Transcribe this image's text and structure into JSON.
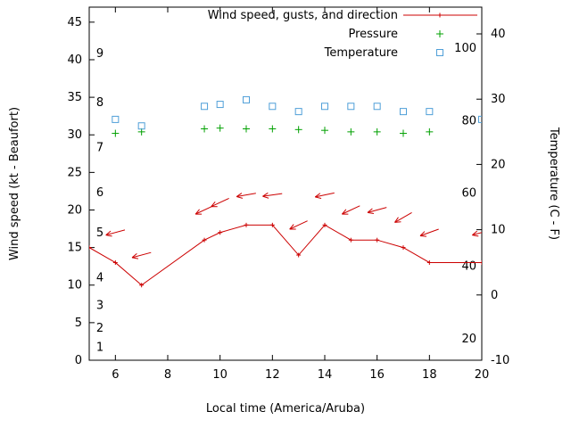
{
  "chart_data": {
    "type": "line",
    "title": "",
    "xlabel": "Local time (America/Aruba)",
    "ylabel_left": "Wind speed (kt - Beaufort)",
    "ylabel_right": "Temperature (C - F)",
    "xlim": [
      5,
      20
    ],
    "xticks": [
      6,
      8,
      10,
      12,
      14,
      16,
      18,
      20
    ],
    "ylim_left": [
      0,
      47
    ],
    "yticks_left": [
      0,
      5,
      10,
      15,
      20,
      25,
      30,
      35,
      40,
      45
    ],
    "ylim_right": [
      -10,
      44.1
    ],
    "yticks_right": [
      -10,
      0,
      10,
      20,
      30,
      40
    ],
    "grid": false,
    "legend_position": "top-right-inside",
    "legend": {
      "wind": "Wind speed, gusts, and direction",
      "pressure": "Pressure",
      "temperature": "Temperature"
    },
    "colors": {
      "wind": "#cc0000",
      "pressure": "#00a000",
      "temperature": "#4f9fd8",
      "axis": "#000000"
    },
    "beaufort_scale": [
      {
        "label": "1",
        "kt": 1.7
      },
      {
        "label": "2",
        "kt": 4.3
      },
      {
        "label": "3",
        "kt": 7.3
      },
      {
        "label": "4",
        "kt": 11
      },
      {
        "label": "5",
        "kt": 17
      },
      {
        "label": "6",
        "kt": 22.3
      },
      {
        "label": "7",
        "kt": 28.3
      },
      {
        "label": "8",
        "kt": 34.3
      },
      {
        "label": "9",
        "kt": 40.8
      }
    ],
    "fahrenheit_scale": [
      {
        "label": "20",
        "c": -6.7
      },
      {
        "label": "40",
        "c": 4.4
      },
      {
        "label": "60",
        "c": 15.6
      },
      {
        "label": "80",
        "c": 26.7
      },
      {
        "label": "100",
        "c": 37.8
      }
    ],
    "series": [
      {
        "name": "wind_speed_kt",
        "type": "line+points",
        "marker": "plus",
        "axis": "left",
        "color": "#cc0000",
        "points": [
          [
            5,
            15
          ],
          [
            6,
            13
          ],
          [
            7,
            10
          ],
          [
            9.4,
            16
          ],
          [
            10,
            17
          ],
          [
            11,
            18
          ],
          [
            12,
            18
          ],
          [
            13,
            14
          ],
          [
            14,
            18
          ],
          [
            15,
            16
          ],
          [
            16,
            16
          ],
          [
            17,
            15
          ],
          [
            18,
            13
          ],
          [
            20,
            13
          ]
        ]
      },
      {
        "name": "wind_gusts_direction",
        "type": "vectors",
        "axis": "left",
        "color": "#cc0000",
        "points": [
          [
            6,
            17,
            195
          ],
          [
            7,
            14,
            195
          ],
          [
            9.4,
            20,
            205
          ],
          [
            10,
            21,
            205
          ],
          [
            11,
            22,
            190
          ],
          [
            12,
            22,
            188
          ],
          [
            13,
            18,
            205
          ],
          [
            14,
            22,
            192
          ],
          [
            15,
            20,
            205
          ],
          [
            16,
            20,
            195
          ],
          [
            17,
            19,
            210
          ],
          [
            18,
            17,
            200
          ],
          [
            20,
            17,
            195
          ]
        ]
      },
      {
        "name": "pressure_inhg",
        "type": "points",
        "marker": "plus",
        "axis": "left",
        "color": "#00a000",
        "points": [
          [
            6,
            30.2
          ],
          [
            7,
            30.4
          ],
          [
            9.4,
            30.8
          ],
          [
            10,
            30.9
          ],
          [
            11,
            30.8
          ],
          [
            12,
            30.8
          ],
          [
            13,
            30.7
          ],
          [
            14,
            30.6
          ],
          [
            15,
            30.4
          ],
          [
            16,
            30.4
          ],
          [
            17,
            30.2
          ],
          [
            18,
            30.4
          ]
        ]
      },
      {
        "name": "temperature_c",
        "type": "points",
        "marker": "square",
        "axis": "right",
        "color": "#4f9fd8",
        "points": [
          [
            6,
            26.9
          ],
          [
            7,
            25.9
          ],
          [
            9.4,
            28.9
          ],
          [
            10,
            29.2
          ],
          [
            11,
            29.9
          ],
          [
            12,
            28.9
          ],
          [
            13,
            28.1
          ],
          [
            14,
            28.9
          ],
          [
            15,
            28.9
          ],
          [
            16,
            28.9
          ],
          [
            17,
            28.1
          ],
          [
            18,
            28.1
          ],
          [
            20,
            26.9
          ]
        ]
      }
    ]
  }
}
